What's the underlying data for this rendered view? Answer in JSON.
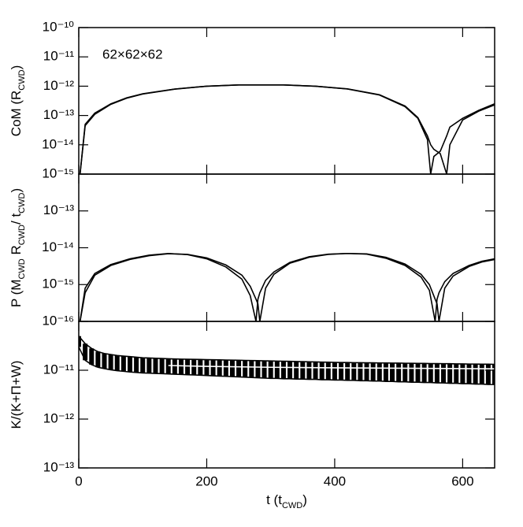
{
  "chart_data": [
    {
      "type": "line",
      "log_y": true,
      "annotation": "62×62×62",
      "ylabel": [
        {
          "text": "CoM (R"
        },
        {
          "text": "CWD",
          "sub": true
        },
        {
          "text": ")"
        }
      ],
      "xlim": [
        0,
        650
      ],
      "xticks": [
        0,
        200,
        400,
        600
      ],
      "ylim": [
        1e-15,
        1e-10
      ],
      "yticks": [
        {
          "value": 1e-15,
          "label": "10⁻¹⁵"
        },
        {
          "value": 1e-14,
          "label": "10⁻¹⁴"
        },
        {
          "value": 1e-13,
          "label": "10⁻¹³"
        },
        {
          "value": 1e-12,
          "label": "10⁻¹²"
        },
        {
          "value": 1e-11,
          "label": "10⁻¹¹"
        },
        {
          "value": 1e-10,
          "label": "10⁻¹⁰"
        }
      ],
      "x": [
        2,
        10,
        25,
        50,
        75,
        100,
        150,
        200,
        250,
        280,
        320,
        370,
        420,
        470,
        510,
        530,
        545,
        550,
        555,
        565,
        575,
        580,
        600,
        625,
        650
      ],
      "series": [
        {
          "color": "#000000",
          "values": [
            1e-15,
            5e-14,
            1.2e-13,
            2.5e-13,
            4e-13,
            5.5e-13,
            8e-13,
            1e-12,
            1.1e-12,
            1.1e-12,
            1.1e-12,
            1e-12,
            8e-13,
            5e-13,
            2e-13,
            8e-14,
            1.5e-14,
            1e-15,
            4e-15,
            6e-15,
            2e-14,
            4e-14,
            8e-14,
            1.5e-13,
            2.5e-13
          ]
        },
        {
          "color": "#000000",
          "values": [
            1e-15,
            4.5e-14,
            1.1e-13,
            2.4e-13,
            3.9e-13,
            5.4e-13,
            7.9e-13,
            1e-12,
            1.1e-12,
            1.1e-12,
            1.1e-12,
            1e-12,
            8.1e-13,
            5.1e-13,
            2.1e-13,
            8.5e-14,
            2e-14,
            1e-14,
            7e-15,
            5e-15,
            1e-15,
            1e-14,
            7e-14,
            1.4e-13,
            2.3e-13
          ]
        }
      ]
    },
    {
      "type": "line",
      "log_y": true,
      "ylabel": [
        {
          "text": "P (M"
        },
        {
          "text": "CWD",
          "sub": true
        },
        {
          "text": " R"
        },
        {
          "text": "CWD",
          "sub": true
        },
        {
          "text": "/ t"
        },
        {
          "text": "CWD",
          "sub": true
        },
        {
          "text": ")"
        }
      ],
      "xlim": [
        0,
        650
      ],
      "xticks": [
        0,
        200,
        400,
        600
      ],
      "ylim": [
        1e-16,
        1e-12
      ],
      "yticks": [
        {
          "value": 1e-16,
          "label": "10⁻¹⁶"
        },
        {
          "value": 1e-15,
          "label": "10⁻¹⁵"
        },
        {
          "value": 1e-14,
          "label": "10⁻¹⁴"
        },
        {
          "value": 1e-13,
          "label": "10⁻¹³"
        }
      ],
      "x": [
        2,
        10,
        25,
        50,
        80,
        110,
        140,
        170,
        200,
        230,
        255,
        268,
        277,
        280,
        283,
        292,
        305,
        330,
        360,
        390,
        420,
        450,
        480,
        510,
        535,
        548,
        557,
        560,
        563,
        572,
        585,
        610,
        630,
        650
      ],
      "series": [
        {
          "color": "#000000",
          "values": [
            1e-16,
            8e-16,
            2e-15,
            3.5e-15,
            5e-15,
            6.3e-15,
            7e-15,
            6.5e-15,
            5e-15,
            3e-15,
            1.4e-15,
            5e-16,
            1e-16,
            4e-16,
            6e-16,
            1.3e-15,
            2.2e-15,
            4e-15,
            5.7e-15,
            6.7e-15,
            7e-15,
            6.7e-15,
            5.2e-15,
            3.3e-15,
            1.6e-15,
            7e-16,
            1e-16,
            4e-16,
            6e-16,
            1.2e-15,
            2e-15,
            3.3e-15,
            4.3e-15,
            5e-15
          ]
        },
        {
          "color": "#000000",
          "values": [
            1e-16,
            6e-16,
            1.8e-15,
            3.3e-15,
            4.8e-15,
            6.1e-15,
            6.9e-15,
            6.6e-15,
            5.3e-15,
            3.4e-15,
            1.8e-15,
            9e-16,
            4e-16,
            3e-16,
            1e-16,
            8e-16,
            1.9e-15,
            3.8e-15,
            5.5e-15,
            6.6e-15,
            7e-15,
            6.8e-15,
            5.5e-15,
            3.6e-15,
            1.9e-15,
            1e-15,
            4e-16,
            3e-16,
            1e-16,
            8e-16,
            1.7e-15,
            3.1e-15,
            4.1e-15,
            4.8e-15
          ]
        }
      ]
    },
    {
      "type": "band",
      "log_y": true,
      "ylabel": [
        {
          "text": "K/(K+Π+W)"
        }
      ],
      "xlabel": [
        {
          "text": "t (t"
        },
        {
          "text": "CWD",
          "sub": true
        },
        {
          "text": ")"
        }
      ],
      "xlim": [
        0,
        650
      ],
      "xticks": [
        0,
        200,
        400,
        600
      ],
      "ylim": [
        1e-13,
        1e-10
      ],
      "yticks": [
        {
          "value": 1e-13,
          "label": "10⁻¹³"
        },
        {
          "value": 1e-12,
          "label": "10⁻¹²"
        },
        {
          "value": 1e-11,
          "label": "10⁻¹¹"
        }
      ],
      "x": [
        0,
        10,
        20,
        30,
        40,
        50,
        60,
        70,
        80,
        90,
        100,
        110,
        120,
        130,
        140,
        150,
        160,
        170,
        180,
        190,
        200,
        210,
        220,
        230,
        240,
        250,
        260,
        270,
        280,
        290,
        300,
        310,
        320,
        330,
        340,
        350,
        360,
        370,
        380,
        390,
        400,
        410,
        420,
        430,
        440,
        450,
        460,
        470,
        480,
        490,
        500,
        510,
        520,
        530,
        540,
        550,
        560,
        570,
        580,
        590,
        600,
        610,
        620,
        630,
        640,
        650
      ],
      "series": [
        {
          "color": "#000000",
          "values": [
            5e-11,
            3.5e-11,
            2.8e-11,
            2.4e-11,
            2.2e-11,
            2.1e-11,
            2e-11,
            1.95e-11,
            1.9e-11,
            1.85e-11,
            1.8e-11,
            1.78e-11,
            1.76e-11,
            1.74e-11,
            1.72e-11,
            1.7e-11,
            1.69e-11,
            1.68e-11,
            1.67e-11,
            1.66e-11,
            1.65e-11,
            1.64e-11,
            1.63e-11,
            1.62e-11,
            1.61e-11,
            1.6e-11,
            1.59e-11,
            1.58e-11,
            1.57e-11,
            1.56e-11,
            1.55e-11,
            1.54e-11,
            1.53e-11,
            1.52e-11,
            1.51e-11,
            1.5e-11,
            1.49e-11,
            1.48e-11,
            1.47e-11,
            1.46e-11,
            1.45e-11,
            1.44e-11,
            1.44e-11,
            1.43e-11,
            1.43e-11,
            1.42e-11,
            1.42e-11,
            1.41e-11,
            1.41e-11,
            1.4e-11,
            1.4e-11,
            1.39e-11,
            1.39e-11,
            1.38e-11,
            1.38e-11,
            1.37e-11,
            1.37e-11,
            1.36e-11,
            1.36e-11,
            1.35e-11,
            1.35e-11,
            1.34e-11,
            1.34e-11,
            1.33e-11,
            1.33e-11,
            1.32e-11
          ]
        },
        {
          "color": "#000000",
          "values": [
            3e-11,
            1.6e-11,
            1.3e-11,
            1.15e-11,
            1.08e-11,
            1.02e-11,
            9.8e-12,
            9.5e-12,
            9.2e-12,
            9e-12,
            8.8e-12,
            8.7e-12,
            8.6e-12,
            8.5e-12,
            8.4e-12,
            8.3e-12,
            8.2e-12,
            8.1e-12,
            8e-12,
            7.9e-12,
            7.8e-12,
            7.7e-12,
            7.6e-12,
            7.5e-12,
            7.4e-12,
            7.3e-12,
            7.2e-12,
            7.1e-12,
            7e-12,
            6.9e-12,
            6.8e-12,
            6.8e-12,
            6.7e-12,
            6.7e-12,
            6.6e-12,
            6.6e-12,
            6.5e-12,
            6.5e-12,
            6.4e-12,
            6.4e-12,
            6.3e-12,
            6.3e-12,
            6.2e-12,
            6.2e-12,
            6.1e-12,
            6.1e-12,
            6e-12,
            6e-12,
            5.9e-12,
            5.9e-12,
            5.8e-12,
            5.8e-12,
            5.7e-12,
            5.7e-12,
            5.6e-12,
            5.6e-12,
            5.5e-12,
            5.5e-12,
            5.4e-12,
            5.4e-12,
            5.3e-12,
            5.3e-12,
            5.2e-12,
            5.2e-12,
            5.1e-12,
            5.1e-12
          ]
        },
        {
          "color": "#ffffff",
          "x": [
            140,
            200,
            300,
            400,
            500,
            600,
            650
          ],
          "values": [
            1.25e-11,
            1.2e-11,
            1.15e-11,
            1.12e-11,
            1.1e-11,
            1.08e-11,
            1.07e-11
          ]
        }
      ]
    }
  ]
}
